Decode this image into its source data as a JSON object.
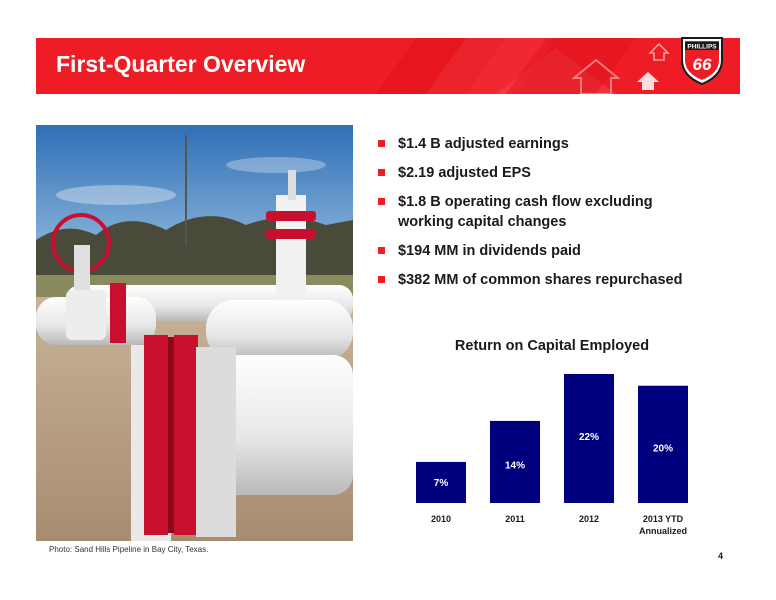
{
  "header": {
    "title": "First-Quarter Overview",
    "accent_color": "#ee1c25",
    "logo": {
      "line1": "PHILLIPS",
      "line2": "66"
    }
  },
  "photo": {
    "caption": "Photo: Sand Hills Pipeline in Bay City, Texas."
  },
  "bullets": [
    "$1.4 B adjusted earnings",
    "$2.19 adjusted EPS",
    "$1.8 B operating cash flow excluding working capital changes",
    "$194 MM in dividends paid",
    "$382 MM of common shares repurchased"
  ],
  "chart_data": {
    "type": "bar",
    "title": "Return on Capital Employed",
    "categories": [
      "2010",
      "2011",
      "2012",
      "2013 YTD Annualized"
    ],
    "category_lines": [
      [
        "2010"
      ],
      [
        "2011"
      ],
      [
        "2012"
      ],
      [
        "2013 YTD",
        "Annualized"
      ]
    ],
    "values": [
      7,
      14,
      22,
      20
    ],
    "value_labels": [
      "7%",
      "14%",
      "22%",
      "20%"
    ],
    "ylim": [
      0,
      22
    ],
    "bar_color": "#00007f",
    "grid": false,
    "legend": "none"
  },
  "footer": {
    "page_number": "4"
  }
}
